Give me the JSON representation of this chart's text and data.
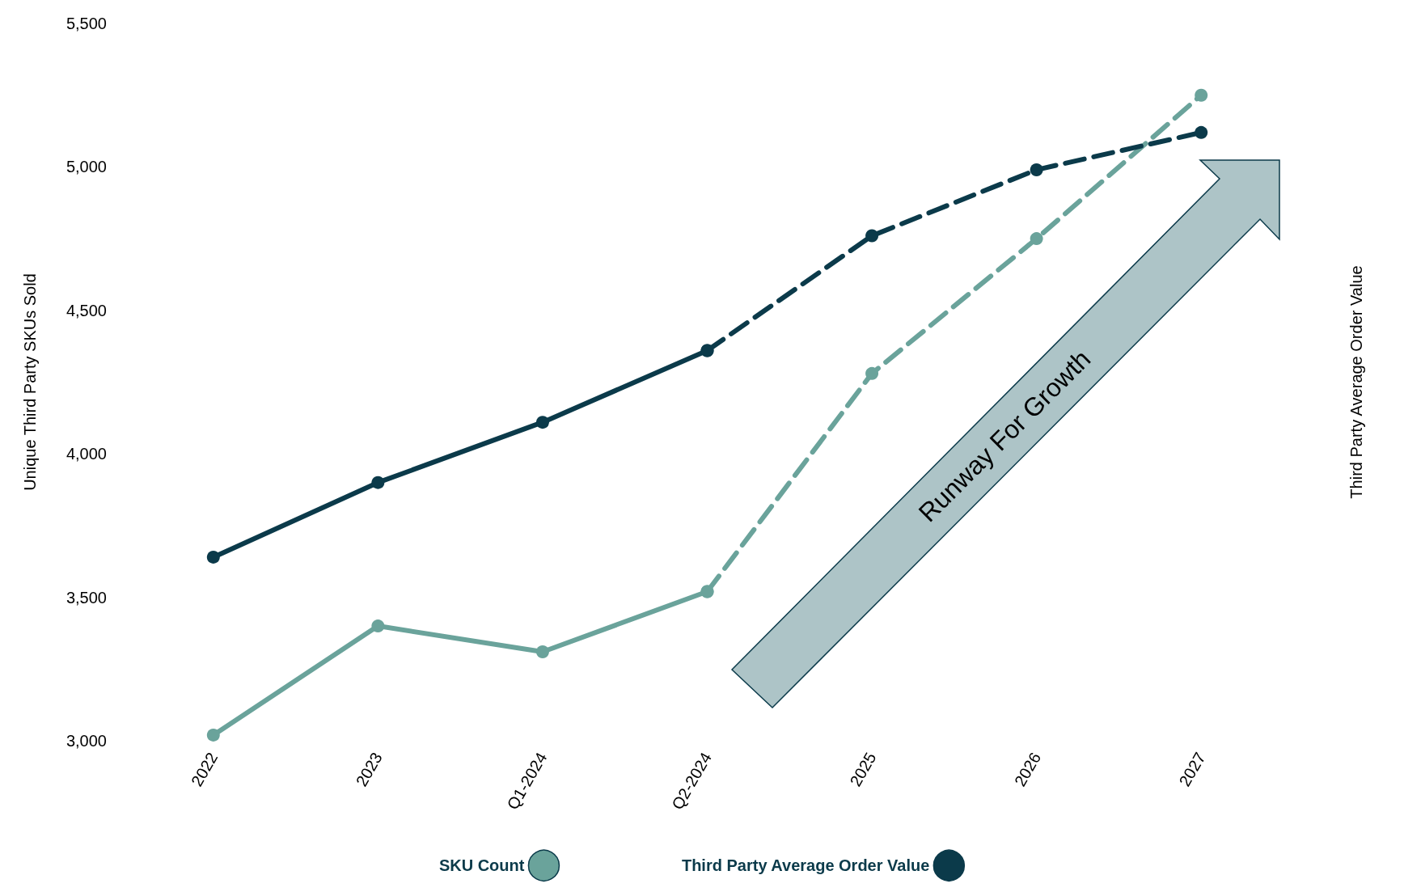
{
  "chart_data": {
    "type": "line",
    "categories": [
      "2022",
      "2023",
      "Q1-2024",
      "Q2-2024",
      "2025",
      "2026",
      "2027"
    ],
    "ylabel": "Unique Third Party SKUs Sold",
    "y2label": "Third Party Average Order Value",
    "ylim": [
      3000,
      5500
    ],
    "yticks": [
      {
        "value": 3000,
        "label": "3,000"
      },
      {
        "value": 3500,
        "label": "3,500"
      },
      {
        "value": 4000,
        "label": "4,000"
      },
      {
        "value": 4500,
        "label": "4,500"
      },
      {
        "value": 5000,
        "label": "5,000"
      },
      {
        "value": 5500,
        "label": "5,500"
      }
    ],
    "series": [
      {
        "name": "SKU Count",
        "color": "#6aa39b",
        "line_style": "solid",
        "values": [
          3020,
          3400,
          3310,
          3520,
          null,
          null,
          null
        ]
      },
      {
        "color": "#6aa39b",
        "line_style": "dashed",
        "values": [
          null,
          null,
          null,
          3520,
          4280,
          4750,
          5250
        ]
      },
      {
        "name": "Third Party Average Order Value",
        "color": "#0b3a4a",
        "line_style": "solid",
        "values": [
          3640,
          3900,
          4110,
          4360,
          null,
          null,
          null
        ]
      },
      {
        "color": "#0b3a4a",
        "line_style": "dashed",
        "values": [
          null,
          null,
          null,
          4360,
          4760,
          4990,
          5120
        ]
      }
    ],
    "annotations": [
      "Runway For Growth"
    ],
    "marker": "circle",
    "grid": false,
    "legend": "bottom"
  }
}
